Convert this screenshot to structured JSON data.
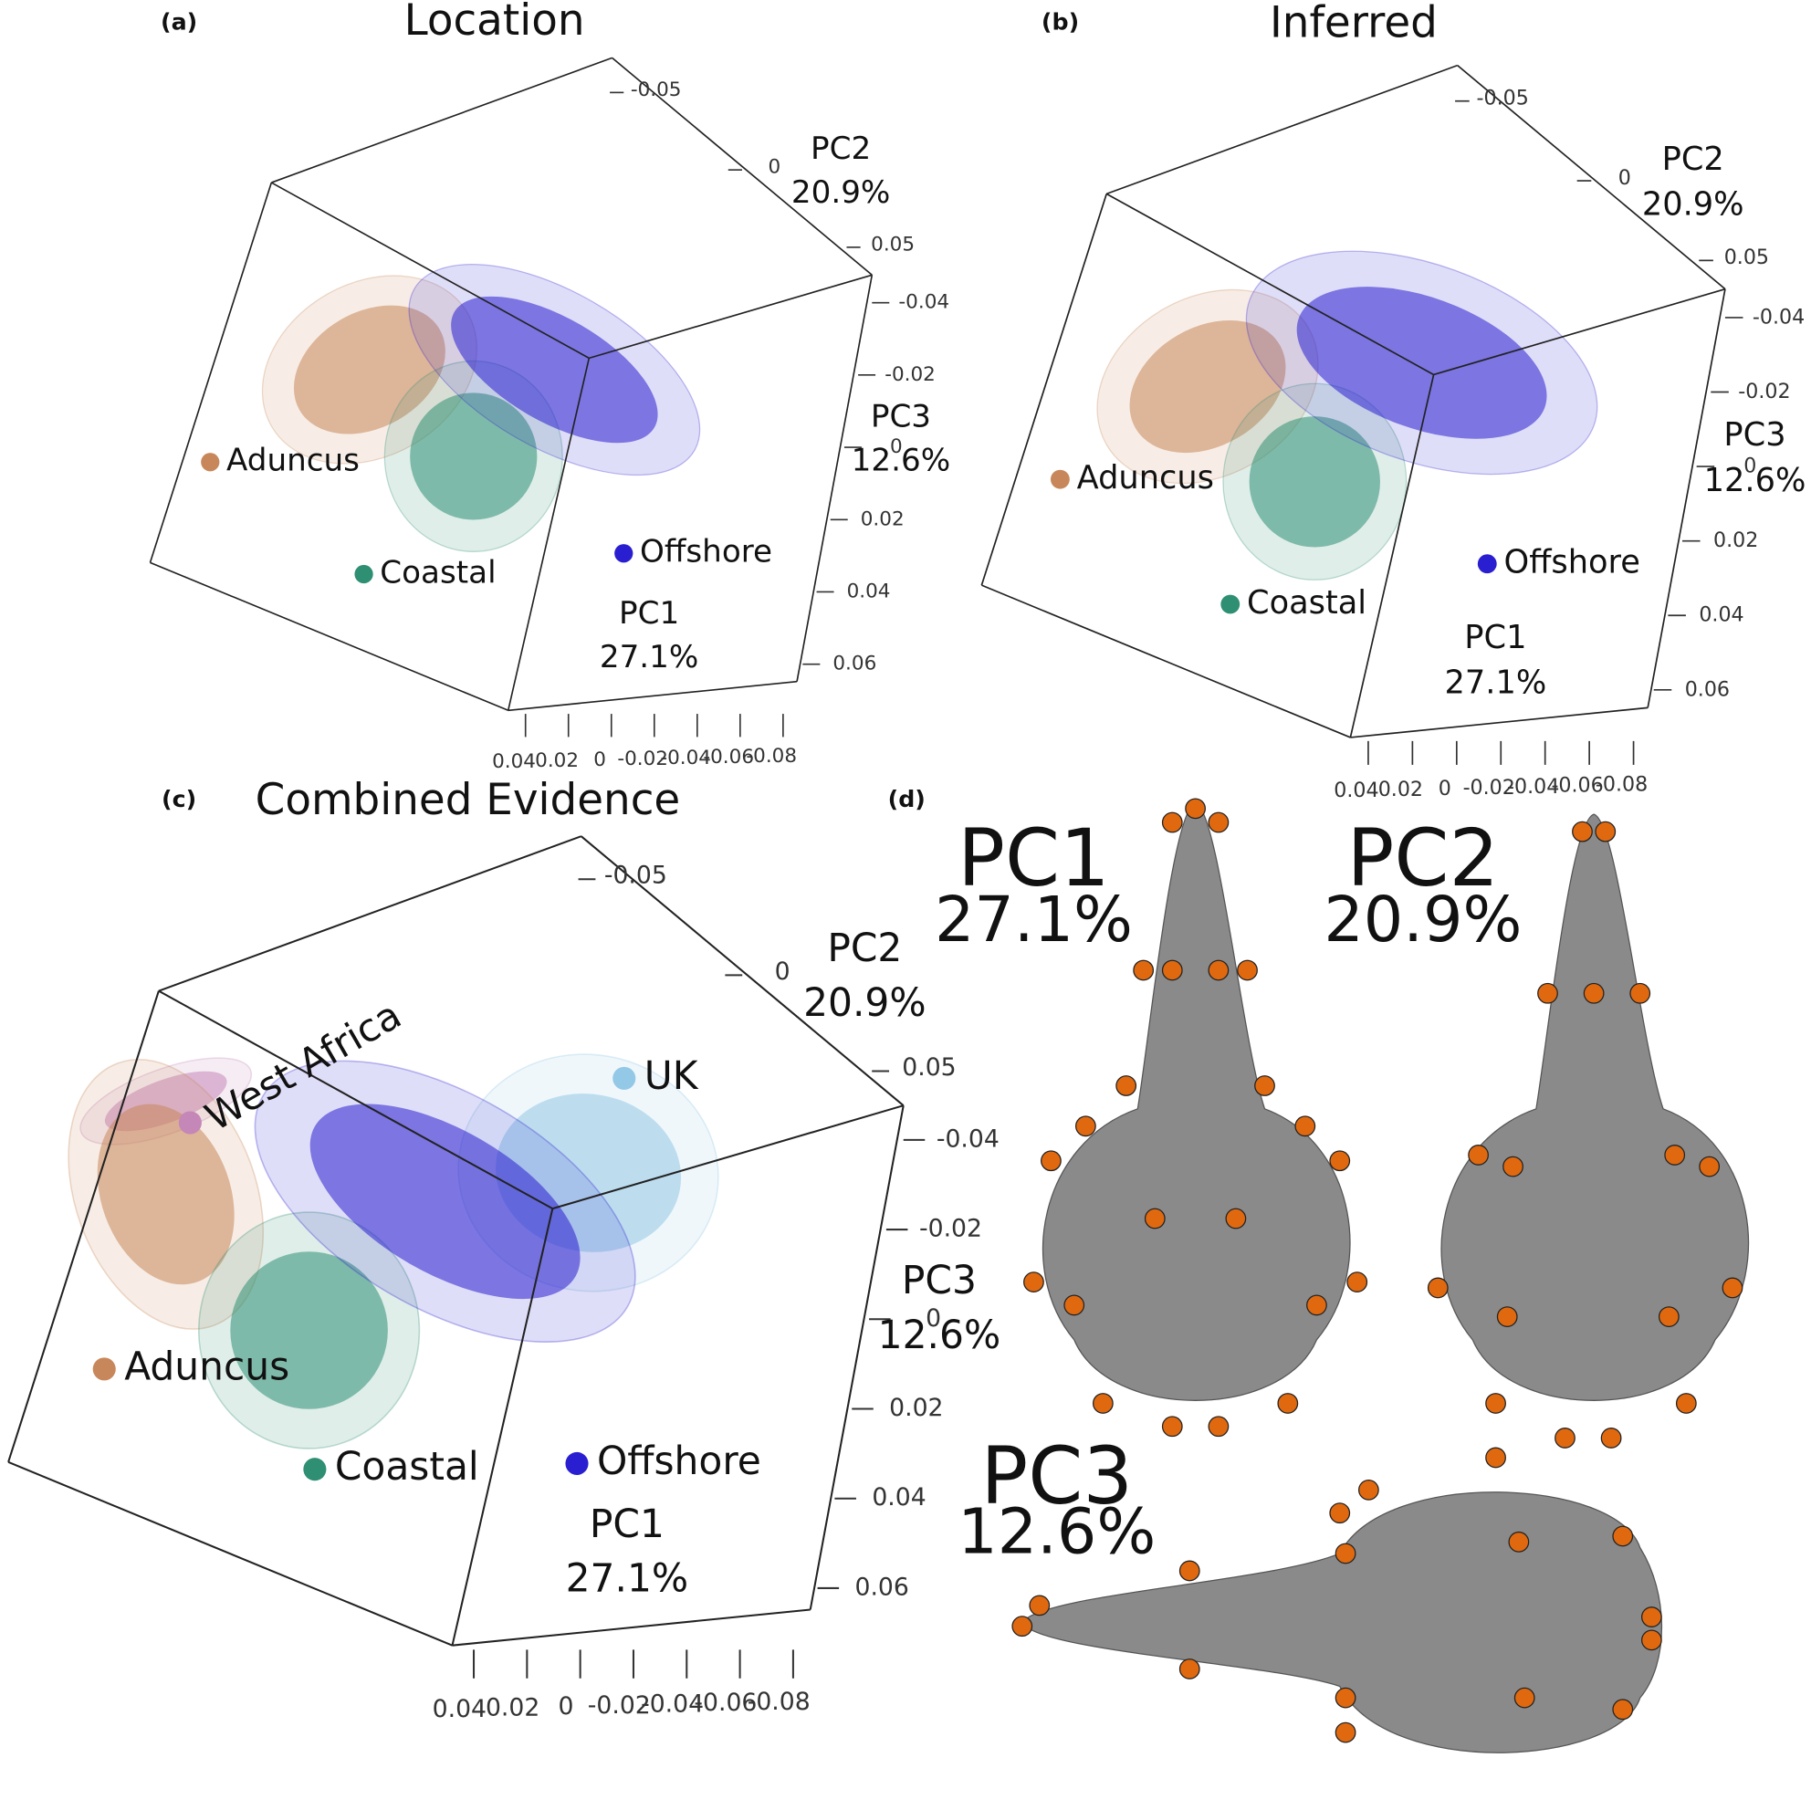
{
  "panels": [
    {
      "tag": "(a)",
      "title": "Location",
      "axes": [
        {
          "name": "PC1",
          "variance": "27.1%",
          "ticks": [
            0.04,
            0.02,
            0,
            -0.02,
            -0.04,
            -0.06,
            -0.08
          ]
        },
        {
          "name": "PC2",
          "variance": "20.9%",
          "ticks": [
            -0.05,
            0,
            0.05
          ]
        },
        {
          "name": "PC3",
          "variance": "12.6%",
          "ticks": [
            -0.04,
            -0.02,
            0,
            0.02,
            0.04,
            0.06
          ]
        }
      ],
      "groups": [
        {
          "name": "Aduncus",
          "color": "#c8875a"
        },
        {
          "name": "Coastal",
          "color": "#2e8f73"
        },
        {
          "name": "Offshore",
          "color": "#2a1fd0"
        }
      ]
    },
    {
      "tag": "(b)",
      "title": "Inferred",
      "axes": [
        {
          "name": "PC1",
          "variance": "27.1%",
          "ticks": [
            0.04,
            0.02,
            0,
            -0.02,
            -0.04,
            -0.06,
            -0.08
          ]
        },
        {
          "name": "PC2",
          "variance": "20.9%",
          "ticks": [
            -0.05,
            0,
            0.05
          ]
        },
        {
          "name": "PC3",
          "variance": "12.6%",
          "ticks": [
            -0.04,
            -0.02,
            0,
            0.02,
            0.04,
            0.06
          ]
        }
      ],
      "groups": [
        {
          "name": "Aduncus",
          "color": "#c8875a"
        },
        {
          "name": "Coastal",
          "color": "#2e8f73"
        },
        {
          "name": "Offshore",
          "color": "#2a1fd0"
        }
      ]
    },
    {
      "tag": "(c)",
      "title": "Combined Evidence",
      "axes": [
        {
          "name": "PC1",
          "variance": "27.1%",
          "ticks": [
            0.04,
            0.02,
            0,
            -0.02,
            -0.04,
            -0.06,
            -0.08
          ]
        },
        {
          "name": "PC2",
          "variance": "20.9%",
          "ticks": [
            -0.05,
            0,
            0.05
          ]
        },
        {
          "name": "PC3",
          "variance": "12.6%",
          "ticks": [
            -0.04,
            -0.02,
            0,
            0.02,
            0.04,
            0.06
          ]
        }
      ],
      "groups": [
        {
          "name": "West Africa",
          "color": "#c487b8"
        },
        {
          "name": "UK",
          "color": "#93c8e6"
        },
        {
          "name": "Aduncus",
          "color": "#c8875a"
        },
        {
          "name": "Coastal",
          "color": "#2e8f73"
        },
        {
          "name": "Offshore",
          "color": "#2a1fd0"
        }
      ]
    },
    {
      "tag": "(d)",
      "shapes": [
        {
          "name": "PC1",
          "variance": "27.1%"
        },
        {
          "name": "PC2",
          "variance": "20.9%"
        },
        {
          "name": "PC3",
          "variance": "12.6%"
        }
      ]
    }
  ]
}
